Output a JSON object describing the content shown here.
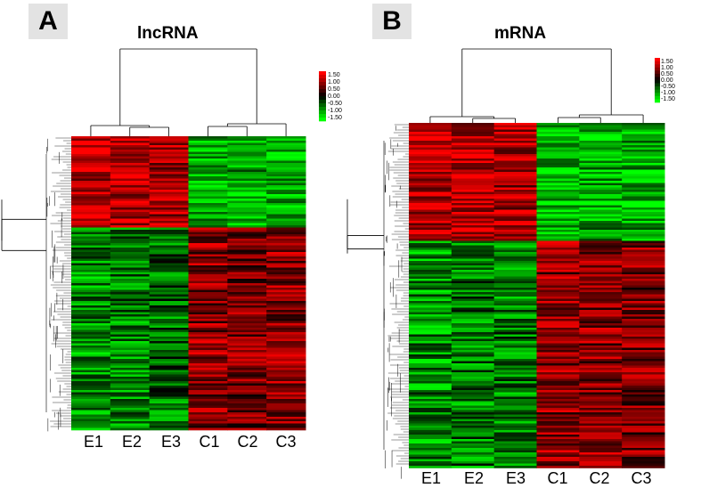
{
  "panels": [
    {
      "letter": "A",
      "title": "lncRNA",
      "samples": [
        "E1",
        "E2",
        "E3",
        "C1",
        "C2",
        "C3"
      ],
      "colorbar": [
        "1.50",
        "1.00",
        "0.50",
        "0.00",
        "-0.50",
        "-1.00",
        "-1.50"
      ]
    },
    {
      "letter": "B",
      "title": "mRNA",
      "samples": [
        "E1",
        "E2",
        "E3",
        "C1",
        "C2",
        "C3"
      ],
      "colorbar": [
        "1.50",
        "1.00",
        "0.50",
        "0.00",
        "-0.50",
        "-1.00",
        "-1.50"
      ]
    }
  ],
  "chart_data": [
    {
      "type": "heatmap",
      "title": "lncRNA",
      "columns": [
        "E1",
        "E2",
        "E3",
        "C1",
        "C2",
        "C3"
      ],
      "scale_range": [
        -1.5,
        1.5
      ],
      "colors": {
        "high": "#ff0000",
        "mid": "#000000",
        "low": "#00ff00"
      },
      "blocks": [
        {
          "row_fraction": 0.31,
          "values": [
            1.1,
            1.1,
            1.0,
            -1.1,
            -1.0,
            -1.1
          ]
        },
        {
          "row_fraction": 0.69,
          "values": [
            -0.8,
            -0.7,
            -0.6,
            0.8,
            0.7,
            0.8
          ]
        }
      ],
      "column_dendrogram": true,
      "row_dendrogram": true
    },
    {
      "type": "heatmap",
      "title": "mRNA",
      "columns": [
        "E1",
        "E2",
        "E3",
        "C1",
        "C2",
        "C3"
      ],
      "scale_range": [
        -1.5,
        1.5
      ],
      "colors": {
        "high": "#ff0000",
        "mid": "#000000",
        "low": "#00ff00"
      },
      "blocks": [
        {
          "row_fraction": 0.34,
          "values": [
            1.1,
            1.1,
            1.0,
            -1.1,
            -1.0,
            -1.0
          ]
        },
        {
          "row_fraction": 0.66,
          "values": [
            -0.8,
            -0.7,
            -0.7,
            0.8,
            0.8,
            0.7
          ]
        }
      ],
      "column_dendrogram": true,
      "row_dendrogram": true
    }
  ]
}
